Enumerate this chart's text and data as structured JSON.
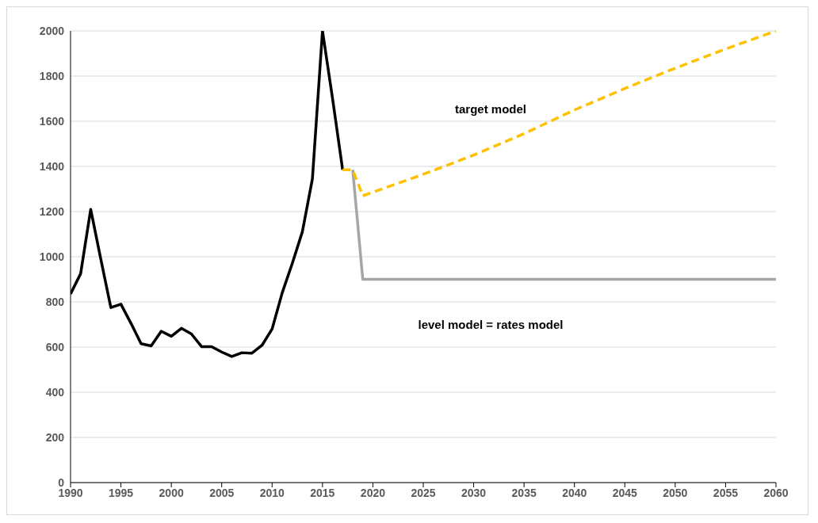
{
  "chart_data": {
    "type": "line",
    "xlim": [
      1990,
      2060
    ],
    "xticks": [
      1990,
      1995,
      2000,
      2005,
      2010,
      2015,
      2020,
      2025,
      2030,
      2035,
      2040,
      2045,
      2050,
      2055,
      2060
    ],
    "ylim": [
      0,
      2000
    ],
    "yticks": [
      0,
      200,
      400,
      600,
      800,
      1000,
      1200,
      1400,
      1600,
      1800,
      2000
    ],
    "grid": "y",
    "legend": false,
    "marker": "none",
    "series": [
      {
        "color": "#000000",
        "line_style": "solid",
        "x": [
          1990,
          1991,
          1992,
          1993,
          1994,
          1995,
          1996,
          1997,
          1998,
          1999,
          2000,
          2001,
          2002,
          2003,
          2004,
          2005,
          2006,
          2007,
          2008,
          2009,
          2010,
          2011,
          2012,
          2013,
          2014,
          2015,
          2016,
          2017
        ],
        "values": [
          835,
          925,
          1210,
          990,
          775,
          790,
          705,
          615,
          605,
          670,
          648,
          683,
          658,
          602,
          602,
          578,
          558,
          575,
          573,
          608,
          680,
          840,
          970,
          1110,
          1345,
          2000,
          1700,
          1385
        ]
      },
      {
        "color": "#a6a6a6",
        "line_style": "solid",
        "x": [
          2018,
          2019,
          2060
        ],
        "values": [
          1385,
          900,
          900
        ]
      },
      {
        "color": "#ffc000",
        "line_style": "dashed",
        "x": [
          2017,
          2018,
          2019,
          2025,
          2030,
          2035,
          2040,
          2045,
          2050,
          2055,
          2060
        ],
        "values": [
          1385,
          1385,
          1270,
          1365,
          1450,
          1545,
          1650,
          1745,
          1835,
          1920,
          2000
        ]
      }
    ],
    "annotations": [
      "target model",
      "level model = rates model"
    ]
  }
}
